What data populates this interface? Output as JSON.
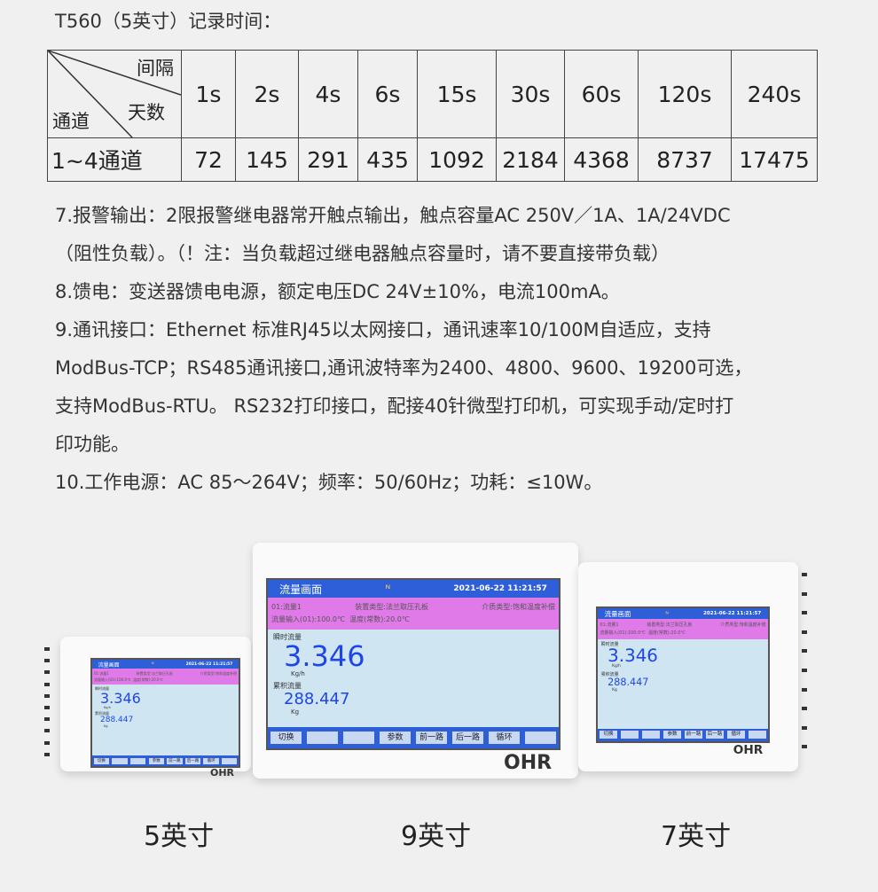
{
  "title": "T560（5英寸）记录时间：",
  "table": {
    "corner_top": "间隔",
    "corner_mid": "天数",
    "corner_bottom": "通道",
    "intervals": [
      "1s",
      "2s",
      "4s",
      "6s",
      "15s",
      "30s",
      "60s",
      "120s",
      "240s"
    ],
    "row_label": "1~4通道",
    "days": [
      "72",
      "145",
      "291",
      "435",
      "1092",
      "2184",
      "4368",
      "8737",
      "17475"
    ]
  },
  "specs": [
    "7.报警输出：2限报警继电器常开触点输出，触点容量AC 250V／1A、1A/24VDC",
    "（阻性负载）。（！注：当负载超过继电器触点容量时，请不要直接带负载）",
    "8.馈电：变送器馈电电源，额定电压DC 24V±10%，电流100mA。",
    "9.通讯接口：Ethernet 标准RJ45以太网接口，通讯速率10/100M自适应，支持",
    "ModBus-TCP；RS485通讯接口,通讯波特率为2400、4800、9600、19200可选，",
    "支持ModBus-RTU。 RS232打印接口，配接40针微型打印机，可实现手动/定时打",
    "印功能。",
    "10.工作电源：AC 85～264V；频率：50/60Hz；功耗：≤10W。"
  ],
  "screen": {
    "title": "流量画面",
    "datetime": "2021-06-22 11:21:57",
    "info1": "01:流量1",
    "info2": "装置类型:法兰取压孔板",
    "info3": "介质类型:饱和温度补偿",
    "info4": "流量输入(01):100.0℃",
    "info5": "温度(常数):20.0℃",
    "inst_label": "瞬时流量",
    "inst_value": "3.346",
    "inst_unit": "Kg/h",
    "total_label": "累积流量",
    "total_value": "288.447",
    "total_unit": "Kg",
    "buttons": [
      "切换",
      "",
      "",
      "参数",
      "前一路",
      "后一路",
      "循环",
      ""
    ]
  },
  "brand": "OHR",
  "captions": [
    "5英寸",
    "9英寸",
    "7英寸"
  ]
}
